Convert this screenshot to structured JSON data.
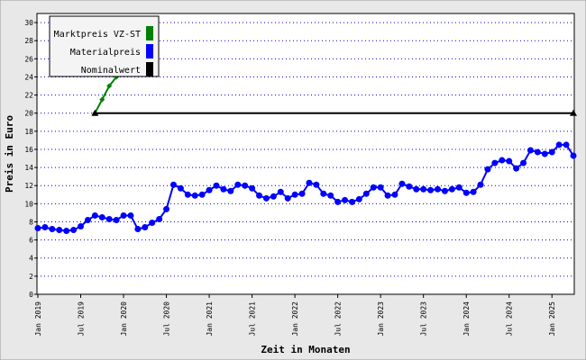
{
  "chart_data": {
    "type": "line",
    "x_label": "Zeit in Monaten",
    "y_label": "Preis in Euro",
    "categories": [
      "Jan 2019",
      null,
      null,
      null,
      null,
      null,
      "Jul 2019",
      null,
      null,
      null,
      null,
      null,
      "Jan 2020",
      null,
      null,
      null,
      null,
      null,
      "Jul 2020",
      null,
      null,
      null,
      null,
      null,
      "Jan 2021",
      null,
      null,
      null,
      null,
      null,
      "Jul 2021",
      null,
      null,
      null,
      null,
      null,
      "Jan 2022",
      null,
      null,
      null,
      null,
      null,
      "Jul 2022",
      null,
      null,
      null,
      null,
      null,
      "Jan 2023",
      null,
      null,
      null,
      null,
      null,
      "Jul 2023",
      null,
      null,
      null,
      null,
      null,
      "Jan 2024",
      null,
      null,
      null,
      null,
      null,
      "Jul 2024",
      null,
      null,
      null,
      null,
      null,
      "Jan 2025",
      null,
      null,
      null
    ],
    "series": [
      {
        "name": "Marktpreis VZ-ST",
        "color": "#008000",
        "marker": "diamond",
        "values": [
          null,
          null,
          null,
          null,
          null,
          null,
          null,
          null,
          20,
          21.5,
          23,
          24,
          null,
          null,
          null,
          null,
          null,
          null,
          null,
          null,
          null,
          null,
          null,
          null,
          null,
          null,
          null,
          null,
          null,
          null,
          null,
          null,
          null,
          null,
          null,
          null,
          null,
          null,
          null,
          null,
          null,
          null,
          null,
          null,
          null,
          null,
          null,
          null,
          null,
          null,
          null,
          null,
          null,
          null,
          null,
          null,
          null,
          null,
          null,
          null,
          null,
          null,
          null,
          null,
          null,
          null,
          null,
          null,
          null,
          null,
          null,
          null,
          null,
          null,
          null,
          null
        ]
      },
      {
        "name": "Materialpreis",
        "color": "#0000ff",
        "marker": "circle",
        "values": [
          7.3,
          7.4,
          7.2,
          7.1,
          7.0,
          7.1,
          7.5,
          8.2,
          8.7,
          8.5,
          8.3,
          8.2,
          8.7,
          8.7,
          7.2,
          7.4,
          7.9,
          8.3,
          9.4,
          12.1,
          11.7,
          11.0,
          10.9,
          11.0,
          11.5,
          12.0,
          11.6,
          11.4,
          12.1,
          12.0,
          11.7,
          10.9,
          10.6,
          10.8,
          11.3,
          10.6,
          11.0,
          11.1,
          12.3,
          12.1,
          11.1,
          10.9,
          10.2,
          10.4,
          10.2,
          10.5,
          11.1,
          11.8,
          11.8,
          10.9,
          11.0,
          12.2,
          11.9,
          11.6,
          11.6,
          11.5,
          11.6,
          11.4,
          11.6,
          11.8,
          11.2,
          11.3,
          12.1,
          13.8,
          14.5,
          14.8,
          14.7,
          13.9,
          14.5,
          15.9,
          15.7,
          15.5,
          15.7,
          16.5,
          16.5,
          15.3
        ]
      },
      {
        "name": "Nominalwert",
        "color": "#000000",
        "marker": "triangle-ends",
        "values": [
          null,
          null,
          null,
          null,
          null,
          null,
          null,
          null,
          20,
          20,
          20,
          20,
          20,
          20,
          20,
          20,
          20,
          20,
          20,
          20,
          20,
          20,
          20,
          20,
          20,
          20,
          20,
          20,
          20,
          20,
          20,
          20,
          20,
          20,
          20,
          20,
          20,
          20,
          20,
          20,
          20,
          20,
          20,
          20,
          20,
          20,
          20,
          20,
          20,
          20,
          20,
          20,
          20,
          20,
          20,
          20,
          20,
          20,
          20,
          20,
          20,
          20,
          20,
          20,
          20,
          20,
          20,
          20,
          20,
          20,
          20,
          20,
          20,
          20,
          20,
          20
        ]
      }
    ],
    "ylim": [
      0,
      31
    ],
    "yticks": [
      0,
      2,
      4,
      6,
      8,
      10,
      12,
      14,
      16,
      18,
      20,
      22,
      24,
      26,
      28,
      30
    ],
    "grid": true,
    "legend": "top-left"
  }
}
